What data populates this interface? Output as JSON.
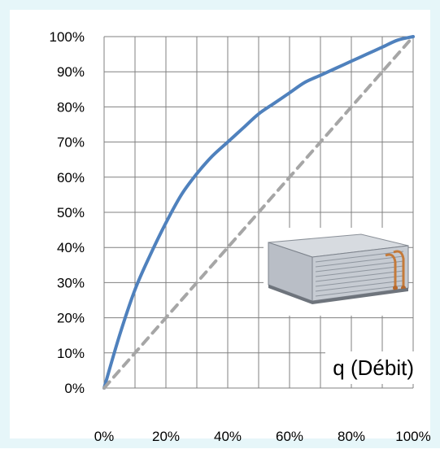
{
  "chart_data": {
    "type": "line",
    "title": "",
    "xlabel": "",
    "ylabel": "",
    "xlim": [
      0,
      100
    ],
    "ylim": [
      0,
      100
    ],
    "grid": true,
    "x_ticks": [
      "0%",
      "20%",
      "40%",
      "60%",
      "80%",
      "100%"
    ],
    "y_ticks": [
      "0%",
      "10%",
      "20%",
      "30%",
      "40%",
      "50%",
      "60%",
      "70%",
      "80%",
      "90%",
      "100%"
    ],
    "series": [
      {
        "style": "solid",
        "color": "#4f81bd",
        "x": [
          0,
          5,
          10,
          15,
          20,
          25,
          30,
          35,
          40,
          45,
          50,
          55,
          60,
          65,
          70,
          75,
          80,
          85,
          90,
          95,
          100
        ],
        "y": [
          0,
          15,
          28,
          38,
          47,
          55,
          61,
          66,
          70,
          74,
          78,
          81,
          84,
          87,
          89,
          91,
          93,
          95,
          97,
          99,
          100
        ]
      },
      {
        "style": "dashed",
        "color": "#a6a6a6",
        "x": [
          0,
          100
        ],
        "y": [
          0,
          100
        ]
      }
    ],
    "annotation": "q (Débit)"
  },
  "decor": {
    "image": "fan-coil-unit-image",
    "frame_color": "#e6f6f9",
    "grid_color": "#808080"
  }
}
